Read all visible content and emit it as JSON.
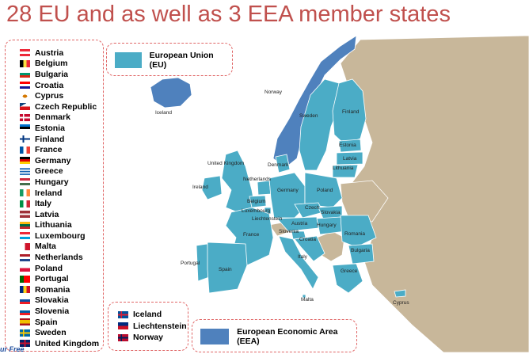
{
  "title": "28 EU and as well as 3 EEA member states",
  "legend": {
    "eu_label": "European Union (EU)",
    "eea_label": "European Economic Area (EEA)",
    "eu_color": "#4bacc6",
    "eea_color": "#4f81bd",
    "other_color": "#c8b79a"
  },
  "eu_countries": [
    {
      "name": "Austria",
      "flag": "austria-flag-icon"
    },
    {
      "name": "Belgium",
      "flag": "belgium-flag-icon"
    },
    {
      "name": "Bulgaria",
      "flag": "bulgaria-flag-icon"
    },
    {
      "name": "Croatia",
      "flag": "croatia-flag-icon"
    },
    {
      "name": "Cyprus",
      "flag": "cyprus-flag-icon"
    },
    {
      "name": "Czech Republic",
      "flag": "czech-republic-flag-icon"
    },
    {
      "name": "Denmark",
      "flag": "denmark-flag-icon"
    },
    {
      "name": "Estonia",
      "flag": "estonia-flag-icon"
    },
    {
      "name": "Finland",
      "flag": "finland-flag-icon"
    },
    {
      "name": "France",
      "flag": "france-flag-icon"
    },
    {
      "name": "Germany",
      "flag": "germany-flag-icon"
    },
    {
      "name": "Greece",
      "flag": "greece-flag-icon"
    },
    {
      "name": "Hungary",
      "flag": "hungary-flag-icon"
    },
    {
      "name": "Ireland",
      "flag": "ireland-flag-icon"
    },
    {
      "name": "Italy",
      "flag": "italy-flag-icon"
    },
    {
      "name": "Latvia",
      "flag": "latvia-flag-icon"
    },
    {
      "name": "Lithuania",
      "flag": "lithuania-flag-icon"
    },
    {
      "name": "Luxembourg",
      "flag": "luxembourg-flag-icon"
    },
    {
      "name": "Malta",
      "flag": "malta-flag-icon"
    },
    {
      "name": "Netherlands",
      "flag": "netherlands-flag-icon"
    },
    {
      "name": "Poland",
      "flag": "poland-flag-icon"
    },
    {
      "name": "Portugal",
      "flag": "portugal-flag-icon"
    },
    {
      "name": "Romania",
      "flag": "romania-flag-icon"
    },
    {
      "name": "Slovakia",
      "flag": "slovakia-flag-icon"
    },
    {
      "name": "Slovenia",
      "flag": "slovenia-flag-icon"
    },
    {
      "name": "Spain",
      "flag": "spain-flag-icon"
    },
    {
      "name": "Sweden",
      "flag": "sweden-flag-icon"
    },
    {
      "name": "United Kingdom",
      "flag": "united-kingdom-flag-icon"
    }
  ],
  "eea_countries": [
    {
      "name": "Iceland",
      "flag": "iceland-flag-icon"
    },
    {
      "name": "Liechtenstein",
      "flag": "liechtenstein-flag-icon"
    },
    {
      "name": "Norway",
      "flag": "norway-flag-icon"
    }
  ],
  "map_labels": {
    "iceland": "Iceland",
    "norway": "Norway",
    "sweden": "Sweden",
    "finland": "Finland",
    "estonia": "Estonia",
    "latvia": "Latvia",
    "lithuania": "Lithuania",
    "denmark": "Denmark",
    "united_kingdom": "United Kingdom",
    "ireland": "Ireland",
    "netherlands": "Netherlands",
    "belgium": "Belgium",
    "luxembourg": "Luxembourg",
    "germany": "Germany",
    "poland": "Poland",
    "czech": "Czech",
    "slovakia": "Slovakia",
    "liechtenstein": "Liechtenstein",
    "austria": "Austria",
    "hungary": "Hungary",
    "slovenia": "Slovenia",
    "croatia": "Croatia",
    "romania": "Romania",
    "france": "France",
    "italy": "Italy",
    "bulgaria": "Bulgaria",
    "portugal": "Portugal",
    "spain": "Spain",
    "greece": "Greece",
    "malta": "Malta",
    "cyprus": "Cyprus"
  },
  "logo_text": "ur Free"
}
